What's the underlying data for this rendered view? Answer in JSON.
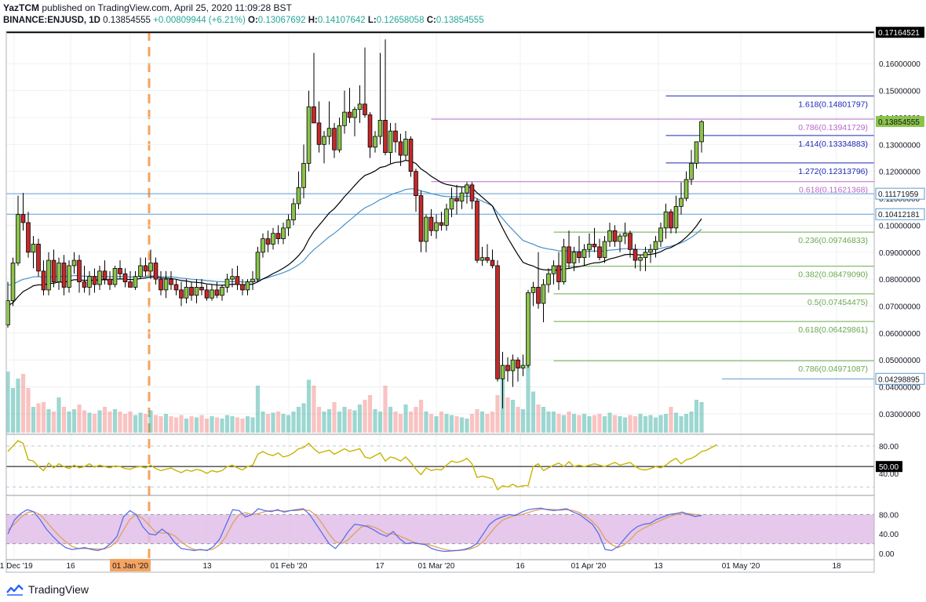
{
  "header": {
    "publisher": "YazTCM",
    "published_text": "published on TradingView.com, April 25, 2020 11:09:28 BST",
    "symbol": "BINANCE:ENJUSD, 1D",
    "last": "0.13854555",
    "change": "+0.00809944 (+6.21%)",
    "o_label": "O:",
    "o_value": "0.13067692",
    "h_label": "H:",
    "h_value": "0.14107642",
    "l_label": "L:",
    "l_value": "0.12658058",
    "c_label": "C:",
    "c_value": "0.13854555"
  },
  "footer": {
    "brand": "TradingView"
  },
  "colors": {
    "up": "#26a69a",
    "down": "#ef5350",
    "candle_up_fill": "#8bc34a",
    "candle_down_fill": "#c62828",
    "fib_ext": "#1c28b8",
    "fib_pink": "#ba68c8",
    "fib_green": "#6aa84f",
    "support": "#5b9bd5",
    "dashed_orange": "#f4a460",
    "rsi_line": "#c8b400",
    "stoch_k": "#5b6ee8",
    "stoch_d": "#e0a060",
    "stoch_band": "#e1bee7",
    "ma_black": "#000000",
    "ma_blue": "#4a90c8"
  },
  "chart_data": {
    "type": "candlestick",
    "title": "BINANCE:ENJUSD, 1D",
    "x_ticks": [
      "01 Dec '19",
      "16",
      "01 Jan '20",
      "13",
      "01 Feb '20",
      "17",
      "01 Mar '20",
      "16",
      "01 Apr '20",
      "13",
      "01 May '20",
      "18"
    ],
    "highlighted_x_tick": "01 Jan '20",
    "y_ticks": [
      "0.16000000",
      "0.15000000",
      "0.14000000",
      "0.13000000",
      "0.12000000",
      "0.11000000",
      "0.10000000",
      "0.09000000",
      "0.08000000",
      "0.07000000",
      "0.06000000",
      "0.05000000",
      "0.04000000",
      "0.03000000"
    ],
    "ylim": [
      0.023,
      0.172
    ],
    "price_labels": [
      {
        "text": "0.17164521",
        "value": 0.17164521,
        "style": "black"
      },
      {
        "text": "0.13854555",
        "value": 0.13854555,
        "style": "green"
      },
      {
        "text": "0.11171959",
        "value": 0.11171959,
        "style": "blue"
      },
      {
        "text": "0.10412181",
        "value": 0.10412181,
        "style": "blue"
      },
      {
        "text": "0.04298895",
        "value": 0.04298895,
        "style": "blue"
      }
    ],
    "horizontal_lines": [
      {
        "value": 0.17164521,
        "color": "black",
        "from": 0,
        "width": 2
      },
      {
        "value": 0.11171959,
        "color": "support",
        "from": 0,
        "width": 1
      },
      {
        "value": 0.10412181,
        "color": "support",
        "from": 0,
        "width": 1
      },
      {
        "value": 0.04298895,
        "color": "support",
        "from": 140,
        "width": 1
      }
    ],
    "fib_levels": [
      {
        "label": "1.618(0.14801797)",
        "value": 0.14801797,
        "color": "fib_ext",
        "from": 129
      },
      {
        "label": "0.786(0.13941729)",
        "value": 0.13941729,
        "color": "fib_pink",
        "from": 83
      },
      {
        "label": "1.414(0.13334883)",
        "value": 0.13334883,
        "color": "fib_ext",
        "from": 129
      },
      {
        "label": "1.272(0.12313796)",
        "value": 0.12313796,
        "color": "fib_ext",
        "from": 129
      },
      {
        "label": "0.618(0.11621368)",
        "value": 0.11621368,
        "color": "fib_pink",
        "from": 83
      },
      {
        "label": "0.236(0.09746833)",
        "value": 0.09746833,
        "color": "fib_green",
        "from": 107
      },
      {
        "label": "0.382(0.08479090)",
        "value": 0.0847909,
        "color": "fib_green",
        "from": 107
      },
      {
        "label": "0.5(0.07454475)",
        "value": 0.07454475,
        "color": "fib_green",
        "from": 107
      },
      {
        "label": "0.618(0.06429861)",
        "value": 0.06429861,
        "color": "fib_green",
        "from": 107
      },
      {
        "label": "0.786(0.04971087)",
        "value": 0.04971087,
        "color": "fib_green",
        "from": 107
      }
    ],
    "candles": [
      [
        0.063,
        0.079,
        0.062,
        0.072
      ],
      [
        0.072,
        0.088,
        0.07,
        0.086
      ],
      [
        0.086,
        0.111,
        0.085,
        0.104
      ],
      [
        0.104,
        0.112,
        0.098,
        0.101
      ],
      [
        0.101,
        0.105,
        0.088,
        0.09
      ],
      [
        0.09,
        0.096,
        0.084,
        0.093
      ],
      [
        0.093,
        0.095,
        0.081,
        0.083
      ],
      [
        0.083,
        0.087,
        0.074,
        0.076
      ],
      [
        0.076,
        0.09,
        0.074,
        0.087
      ],
      [
        0.087,
        0.091,
        0.077,
        0.079
      ],
      [
        0.079,
        0.088,
        0.076,
        0.086
      ],
      [
        0.086,
        0.089,
        0.074,
        0.077
      ],
      [
        0.077,
        0.087,
        0.075,
        0.085
      ],
      [
        0.085,
        0.09,
        0.082,
        0.087
      ],
      [
        0.087,
        0.089,
        0.075,
        0.079
      ],
      [
        0.079,
        0.085,
        0.075,
        0.077
      ],
      [
        0.077,
        0.083,
        0.074,
        0.081
      ],
      [
        0.081,
        0.084,
        0.075,
        0.078
      ],
      [
        0.078,
        0.085,
        0.076,
        0.083
      ],
      [
        0.083,
        0.087,
        0.078,
        0.08
      ],
      [
        0.08,
        0.083,
        0.076,
        0.078
      ],
      [
        0.078,
        0.085,
        0.077,
        0.084
      ],
      [
        0.084,
        0.087,
        0.08,
        0.082
      ],
      [
        0.082,
        0.084,
        0.077,
        0.079
      ],
      [
        0.079,
        0.083,
        0.077,
        0.077
      ],
      [
        0.077,
        0.083,
        0.076,
        0.081
      ],
      [
        0.081,
        0.088,
        0.08,
        0.085
      ],
      [
        0.085,
        0.088,
        0.081,
        0.083
      ],
      [
        0.083,
        0.091,
        0.08,
        0.086
      ],
      [
        0.086,
        0.088,
        0.078,
        0.08
      ],
      [
        0.08,
        0.083,
        0.074,
        0.076
      ],
      [
        0.076,
        0.083,
        0.073,
        0.08
      ],
      [
        0.08,
        0.083,
        0.076,
        0.078
      ],
      [
        0.078,
        0.08,
        0.074,
        0.076
      ],
      [
        0.076,
        0.079,
        0.07,
        0.073
      ],
      [
        0.073,
        0.08,
        0.071,
        0.077
      ],
      [
        0.077,
        0.079,
        0.072,
        0.074
      ],
      [
        0.074,
        0.08,
        0.071,
        0.077
      ],
      [
        0.077,
        0.08,
        0.074,
        0.076
      ],
      [
        0.076,
        0.078,
        0.072,
        0.073
      ],
      [
        0.073,
        0.078,
        0.072,
        0.076
      ],
      [
        0.076,
        0.079,
        0.073,
        0.074
      ],
      [
        0.074,
        0.078,
        0.072,
        0.077
      ],
      [
        0.077,
        0.082,
        0.075,
        0.08
      ],
      [
        0.08,
        0.084,
        0.077,
        0.081
      ],
      [
        0.081,
        0.085,
        0.076,
        0.078
      ],
      [
        0.078,
        0.08,
        0.074,
        0.076
      ],
      [
        0.076,
        0.08,
        0.074,
        0.079
      ],
      [
        0.079,
        0.083,
        0.076,
        0.08
      ],
      [
        0.08,
        0.092,
        0.079,
        0.09
      ],
      [
        0.09,
        0.097,
        0.088,
        0.095
      ],
      [
        0.095,
        0.098,
        0.09,
        0.093
      ],
      [
        0.093,
        0.099,
        0.091,
        0.097
      ],
      [
        0.097,
        0.1,
        0.093,
        0.095
      ],
      [
        0.095,
        0.101,
        0.093,
        0.099
      ],
      [
        0.099,
        0.104,
        0.096,
        0.102
      ],
      [
        0.102,
        0.11,
        0.1,
        0.108
      ],
      [
        0.108,
        0.12,
        0.106,
        0.114
      ],
      [
        0.114,
        0.13,
        0.11,
        0.123
      ],
      [
        0.123,
        0.15,
        0.12,
        0.144
      ],
      [
        0.144,
        0.164,
        0.138,
        0.138
      ],
      [
        0.138,
        0.146,
        0.127,
        0.13
      ],
      [
        0.13,
        0.135,
        0.123,
        0.133
      ],
      [
        0.133,
        0.146,
        0.13,
        0.136
      ],
      [
        0.136,
        0.138,
        0.125,
        0.128
      ],
      [
        0.128,
        0.14,
        0.127,
        0.137
      ],
      [
        0.137,
        0.15,
        0.134,
        0.142
      ],
      [
        0.142,
        0.151,
        0.138,
        0.14
      ],
      [
        0.14,
        0.144,
        0.133,
        0.143
      ],
      [
        0.143,
        0.152,
        0.138,
        0.145
      ],
      [
        0.145,
        0.166,
        0.14,
        0.141
      ],
      [
        0.141,
        0.142,
        0.125,
        0.129
      ],
      [
        0.129,
        0.135,
        0.127,
        0.133
      ],
      [
        0.133,
        0.164,
        0.13,
        0.139
      ],
      [
        0.139,
        0.169,
        0.126,
        0.127
      ],
      [
        0.127,
        0.138,
        0.123,
        0.135
      ],
      [
        0.135,
        0.138,
        0.127,
        0.131
      ],
      [
        0.131,
        0.134,
        0.122,
        0.126
      ],
      [
        0.126,
        0.135,
        0.124,
        0.132
      ],
      [
        0.132,
        0.133,
        0.118,
        0.12
      ],
      [
        0.12,
        0.121,
        0.105,
        0.111
      ],
      [
        0.111,
        0.113,
        0.09,
        0.094
      ],
      [
        0.094,
        0.104,
        0.09,
        0.103
      ],
      [
        0.103,
        0.106,
        0.096,
        0.098
      ],
      [
        0.098,
        0.104,
        0.095,
        0.101
      ],
      [
        0.101,
        0.105,
        0.098,
        0.1
      ],
      [
        0.1,
        0.108,
        0.098,
        0.106
      ],
      [
        0.106,
        0.114,
        0.103,
        0.11
      ],
      [
        0.11,
        0.115,
        0.104,
        0.109
      ],
      [
        0.109,
        0.114,
        0.106,
        0.112
      ],
      [
        0.112,
        0.116,
        0.108,
        0.115
      ],
      [
        0.115,
        0.116,
        0.106,
        0.109
      ],
      [
        0.109,
        0.11,
        0.086,
        0.087
      ],
      [
        0.087,
        0.092,
        0.085,
        0.088
      ],
      [
        0.088,
        0.093,
        0.086,
        0.087
      ],
      [
        0.087,
        0.091,
        0.084,
        0.085
      ],
      [
        0.085,
        0.087,
        0.042,
        0.043
      ],
      [
        0.043,
        0.053,
        0.032,
        0.048
      ],
      [
        0.048,
        0.051,
        0.042,
        0.046
      ],
      [
        0.046,
        0.052,
        0.04,
        0.05
      ],
      [
        0.05,
        0.051,
        0.042,
        0.047
      ],
      [
        0.047,
        0.052,
        0.044,
        0.048
      ],
      [
        0.048,
        0.076,
        0.047,
        0.075
      ],
      [
        0.075,
        0.079,
        0.07,
        0.077
      ],
      [
        0.077,
        0.09,
        0.069,
        0.071
      ],
      [
        0.071,
        0.08,
        0.064,
        0.078
      ],
      [
        0.078,
        0.084,
        0.075,
        0.082
      ],
      [
        0.082,
        0.087,
        0.078,
        0.085
      ],
      [
        0.085,
        0.09,
        0.076,
        0.079
      ],
      [
        0.079,
        0.095,
        0.078,
        0.092
      ],
      [
        0.092,
        0.098,
        0.084,
        0.086
      ],
      [
        0.086,
        0.092,
        0.083,
        0.09
      ],
      [
        0.09,
        0.096,
        0.086,
        0.088
      ],
      [
        0.088,
        0.093,
        0.085,
        0.091
      ],
      [
        0.091,
        0.097,
        0.088,
        0.093
      ],
      [
        0.093,
        0.099,
        0.09,
        0.092
      ],
      [
        0.092,
        0.095,
        0.087,
        0.088
      ],
      [
        0.088,
        0.096,
        0.086,
        0.094
      ],
      [
        0.094,
        0.101,
        0.092,
        0.098
      ],
      [
        0.098,
        0.1,
        0.092,
        0.094
      ],
      [
        0.094,
        0.097,
        0.09,
        0.096
      ],
      [
        0.096,
        0.101,
        0.093,
        0.097
      ],
      [
        0.097,
        0.098,
        0.088,
        0.091
      ],
      [
        0.091,
        0.093,
        0.084,
        0.087
      ],
      [
        0.087,
        0.089,
        0.083,
        0.088
      ],
      [
        0.088,
        0.092,
        0.083,
        0.09
      ],
      [
        0.09,
        0.093,
        0.086,
        0.091
      ],
      [
        0.091,
        0.096,
        0.088,
        0.094
      ],
      [
        0.094,
        0.101,
        0.092,
        0.099
      ],
      [
        0.099,
        0.108,
        0.095,
        0.105
      ],
      [
        0.105,
        0.106,
        0.097,
        0.099
      ],
      [
        0.099,
        0.111,
        0.097,
        0.107
      ],
      [
        0.107,
        0.116,
        0.104,
        0.11
      ],
      [
        0.11,
        0.12,
        0.109,
        0.117
      ],
      [
        0.117,
        0.128,
        0.115,
        0.123
      ],
      [
        0.123,
        0.131,
        0.121,
        0.131
      ],
      [
        0.131,
        0.139,
        0.127,
        0.1385
      ]
    ],
    "volumes": [
      52,
      38,
      46,
      50,
      38,
      22,
      25,
      26,
      20,
      18,
      30,
      22,
      18,
      20,
      24,
      19,
      17,
      16,
      19,
      22,
      18,
      20,
      18,
      16,
      18,
      15,
      17,
      16,
      19,
      15,
      14,
      16,
      14,
      13,
      15,
      12,
      14,
      13,
      15,
      12,
      14,
      13,
      12,
      15,
      14,
      13,
      12,
      14,
      13,
      40,
      18,
      16,
      17,
      18,
      16,
      15,
      18,
      22,
      25,
      45,
      40,
      22,
      18,
      20,
      26,
      18,
      22,
      20,
      19,
      24,
      28,
      32,
      20,
      18,
      40,
      22,
      18,
      16,
      24,
      18,
      22,
      28,
      18,
      16,
      14,
      18,
      16,
      15,
      14,
      13,
      12,
      16,
      20,
      18,
      16,
      18,
      32,
      48,
      30,
      28,
      22,
      20,
      60,
      35,
      24,
      22,
      18,
      18,
      16,
      15,
      18,
      16,
      15,
      16,
      14,
      15,
      16,
      14,
      17,
      15,
      14,
      13,
      15,
      14,
      16,
      14,
      15,
      13,
      15,
      16,
      22,
      17,
      14,
      16,
      18,
      28,
      26,
      20,
      16,
      12
    ],
    "rsi": [
      72,
      80,
      88,
      84,
      60,
      58,
      50,
      44,
      55,
      48,
      54,
      50,
      47,
      52,
      48,
      50,
      54,
      49,
      52,
      50,
      48,
      51,
      50,
      47,
      46,
      49,
      50,
      48,
      52,
      47,
      44,
      46,
      48,
      44,
      41,
      45,
      43,
      46,
      44,
      40,
      44,
      42,
      44,
      50,
      52,
      48,
      45,
      50,
      52,
      68,
      72,
      68,
      66,
      70,
      64,
      66,
      70,
      76,
      78,
      84,
      76,
      70,
      72,
      74,
      68,
      72,
      76,
      72,
      74,
      76,
      64,
      62,
      66,
      70,
      58,
      64,
      62,
      58,
      64,
      56,
      46,
      38,
      48,
      44,
      46,
      45,
      52,
      58,
      56,
      58,
      62,
      54,
      34,
      36,
      34,
      32,
      16,
      22,
      20,
      24,
      20,
      22,
      22,
      50,
      54,
      44,
      48,
      52,
      55,
      50,
      57,
      50,
      52,
      50,
      52,
      54,
      52,
      50,
      53,
      56,
      52,
      54,
      56,
      50,
      46,
      45,
      47,
      50,
      48,
      52,
      58,
      62,
      54,
      60,
      62,
      66,
      72,
      74,
      78,
      82
    ],
    "stoch_k": [
      40,
      68,
      82,
      90,
      86,
      70,
      50,
      35,
      22,
      12,
      8,
      10,
      12,
      8,
      6,
      10,
      20,
      35,
      75,
      88,
      80,
      55,
      40,
      38,
      50,
      40,
      22,
      10,
      8,
      6,
      8,
      6,
      14,
      30,
      60,
      90,
      88,
      75,
      80,
      92,
      88,
      86,
      90,
      85,
      88,
      90,
      92,
      80,
      60,
      40,
      20,
      10,
      25,
      45,
      60,
      58,
      55,
      48,
      40,
      35,
      45,
      30,
      20,
      22,
      20,
      18,
      10,
      6,
      4,
      5,
      6,
      8,
      12,
      20,
      40,
      60,
      70,
      75,
      80,
      78,
      85,
      90,
      92,
      93,
      90,
      88,
      90,
      92,
      85,
      80,
      70,
      60,
      40,
      8,
      6,
      14,
      30,
      45,
      55,
      60,
      62,
      70,
      75,
      80,
      82,
      85,
      80,
      76,
      78
    ],
    "stoch_d": [
      48,
      60,
      74,
      84,
      86,
      80,
      66,
      50,
      36,
      24,
      14,
      10,
      10,
      10,
      9,
      9,
      14,
      25,
      48,
      70,
      80,
      72,
      58,
      44,
      42,
      42,
      36,
      24,
      14,
      8,
      7,
      7,
      9,
      18,
      36,
      62,
      80,
      84,
      80,
      82,
      86,
      88,
      88,
      87,
      88,
      88,
      90,
      88,
      78,
      60,
      40,
      24,
      20,
      28,
      42,
      54,
      58,
      54,
      48,
      40,
      40,
      36,
      30,
      24,
      20,
      20,
      16,
      12,
      8,
      6,
      6,
      7,
      9,
      14,
      24,
      40,
      56,
      68,
      74,
      78,
      80,
      84,
      88,
      91,
      91,
      90,
      89,
      90,
      88,
      84,
      76,
      66,
      52,
      30,
      18,
      12,
      18,
      30,
      44,
      52,
      58,
      64,
      70,
      76,
      80,
      82,
      82,
      80,
      78
    ]
  },
  "indicators": {
    "rsi_ticks": [
      "80.00",
      "50.00",
      "40.00"
    ],
    "stoch_ticks": [
      "80.00",
      "40.00",
      "0.00"
    ]
  }
}
